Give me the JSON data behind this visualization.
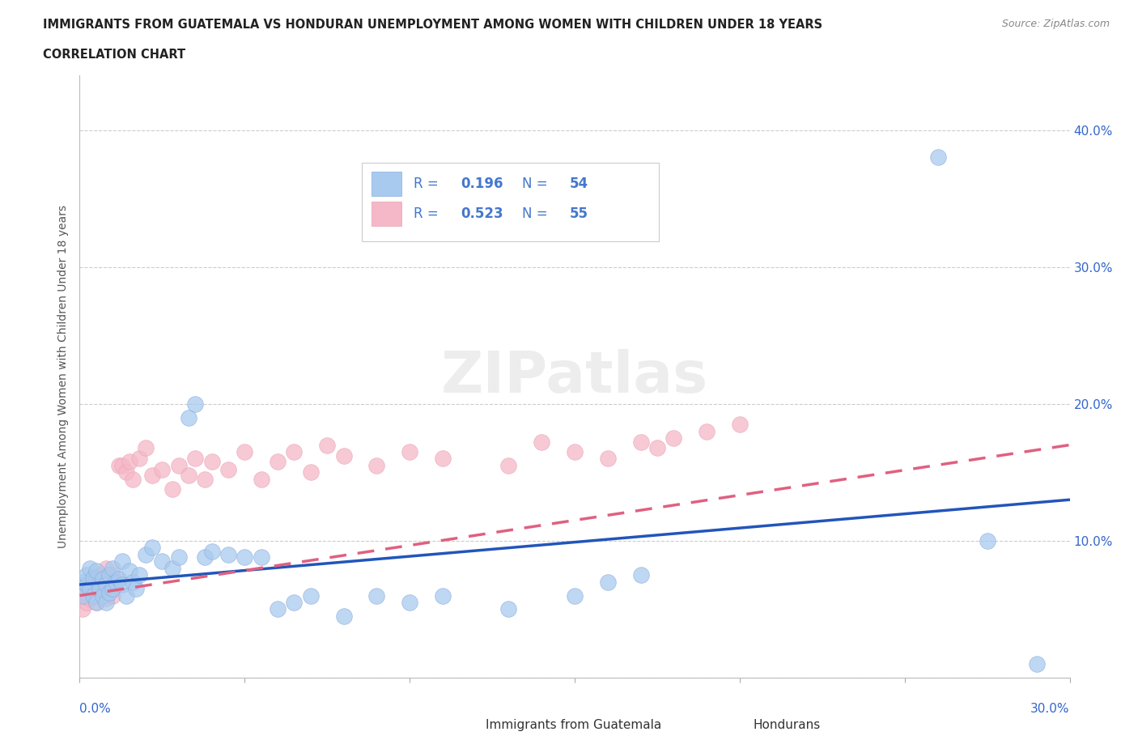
{
  "title_line1": "IMMIGRANTS FROM GUATEMALA VS HONDURAN UNEMPLOYMENT AMONG WOMEN WITH CHILDREN UNDER 18 YEARS",
  "title_line2": "CORRELATION CHART",
  "source_text": "Source: ZipAtlas.com",
  "ylabel": "Unemployment Among Women with Children Under 18 years",
  "xlim": [
    0.0,
    0.3
  ],
  "ylim": [
    0.0,
    0.44
  ],
  "xticks": [
    0.0,
    0.05,
    0.1,
    0.15,
    0.2,
    0.25,
    0.3
  ],
  "yticks": [
    0.0,
    0.1,
    0.2,
    0.3,
    0.4
  ],
  "color_blue": "#A8CAEE",
  "color_pink": "#F5B8C8",
  "line_blue": "#2255BB",
  "line_pink": "#E06080",
  "text_color_blue": "#3366CC",
  "background": "#FFFFFF",
  "legend_text_color": "#4477CC",
  "guatemala_x": [
    0.001,
    0.001,
    0.002,
    0.002,
    0.003,
    0.003,
    0.004,
    0.004,
    0.005,
    0.005,
    0.006,
    0.007,
    0.007,
    0.008,
    0.008,
    0.009,
    0.009,
    0.01,
    0.01,
    0.011,
    0.012,
    0.013,
    0.013,
    0.014,
    0.015,
    0.016,
    0.017,
    0.018,
    0.02,
    0.022,
    0.025,
    0.028,
    0.03,
    0.033,
    0.035,
    0.038,
    0.04,
    0.045,
    0.05,
    0.055,
    0.06,
    0.065,
    0.07,
    0.08,
    0.09,
    0.1,
    0.11,
    0.13,
    0.15,
    0.16,
    0.17,
    0.26,
    0.275,
    0.29
  ],
  "guatemala_y": [
    0.07,
    0.06,
    0.068,
    0.075,
    0.065,
    0.08,
    0.06,
    0.073,
    0.055,
    0.078,
    0.065,
    0.06,
    0.072,
    0.055,
    0.068,
    0.075,
    0.062,
    0.065,
    0.08,
    0.07,
    0.072,
    0.068,
    0.085,
    0.06,
    0.078,
    0.07,
    0.065,
    0.075,
    0.09,
    0.095,
    0.085,
    0.08,
    0.088,
    0.19,
    0.2,
    0.088,
    0.092,
    0.09,
    0.088,
    0.088,
    0.05,
    0.055,
    0.06,
    0.045,
    0.06,
    0.055,
    0.06,
    0.05,
    0.06,
    0.07,
    0.075,
    0.38,
    0.1,
    0.01
  ],
  "honduran_x": [
    0.001,
    0.001,
    0.002,
    0.002,
    0.003,
    0.003,
    0.004,
    0.004,
    0.005,
    0.005,
    0.006,
    0.006,
    0.007,
    0.008,
    0.008,
    0.009,
    0.009,
    0.01,
    0.01,
    0.011,
    0.012,
    0.013,
    0.014,
    0.015,
    0.016,
    0.018,
    0.02,
    0.022,
    0.025,
    0.028,
    0.03,
    0.033,
    0.035,
    0.038,
    0.04,
    0.045,
    0.05,
    0.055,
    0.06,
    0.065,
    0.07,
    0.075,
    0.08,
    0.09,
    0.1,
    0.11,
    0.13,
    0.14,
    0.15,
    0.16,
    0.17,
    0.175,
    0.18,
    0.19,
    0.2
  ],
  "honduran_y": [
    0.065,
    0.05,
    0.06,
    0.055,
    0.068,
    0.058,
    0.062,
    0.072,
    0.055,
    0.065,
    0.06,
    0.075,
    0.068,
    0.058,
    0.08,
    0.065,
    0.07,
    0.06,
    0.075,
    0.07,
    0.155,
    0.155,
    0.15,
    0.158,
    0.145,
    0.16,
    0.168,
    0.148,
    0.152,
    0.138,
    0.155,
    0.148,
    0.16,
    0.145,
    0.158,
    0.152,
    0.165,
    0.145,
    0.158,
    0.165,
    0.15,
    0.17,
    0.162,
    0.155,
    0.165,
    0.16,
    0.155,
    0.172,
    0.165,
    0.16,
    0.172,
    0.168,
    0.175,
    0.18,
    0.185
  ],
  "g_line_x0": 0.0,
  "g_line_y0": 0.068,
  "g_line_x1": 0.3,
  "g_line_y1": 0.13,
  "h_line_x0": 0.0,
  "h_line_y0": 0.06,
  "h_line_x1": 0.3,
  "h_line_y1": 0.17
}
